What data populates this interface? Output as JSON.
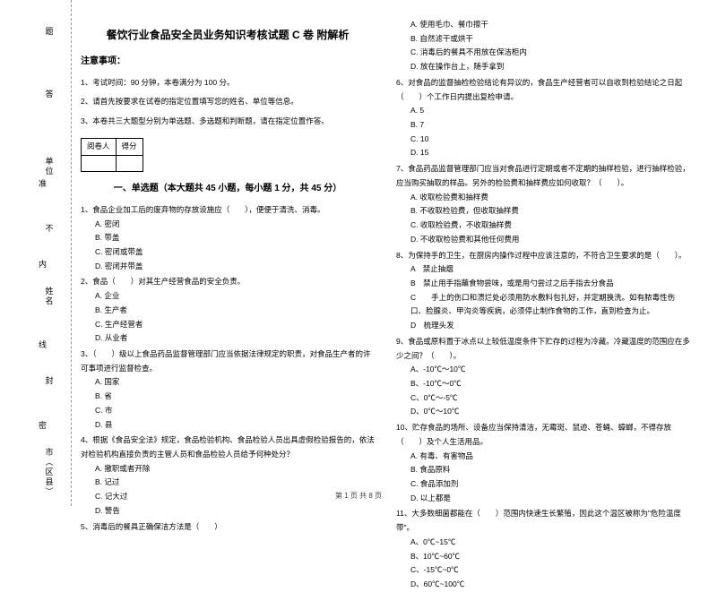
{
  "binding": {
    "labels": [
      "市（区县）",
      "封",
      "姓名",
      "不",
      "单位",
      "答",
      "题"
    ],
    "small": [
      "密",
      "线",
      "内",
      "准"
    ]
  },
  "title": "餐饮行业食品安全员业务知识考核试题 C 卷 附解析",
  "notice": {
    "heading": "注意事项：",
    "items": [
      "1、考试时间：90 分钟，本卷满分为 100 分。",
      "2、请首先按要求在试卷的指定位置填写您的姓名、单位等信息。",
      "3、本卷共三大题型分别为单选题、多选题和判断题，请在指定位置作答。"
    ]
  },
  "scorebox": {
    "col1": "阅卷人",
    "col2": "得分"
  },
  "section1": "一、单选题（本大题共 45 小题，每小题 1 分，共 45 分）",
  "left_questions": [
    {
      "q": "1、食品企业加工后的废弃物的存放设施应（　　），便便于清洗、消毒。",
      "opts": [
        "A. 密闭",
        "B. 带盖",
        "C. 密闭或带盖",
        "D. 密闭并带盖"
      ]
    },
    {
      "q": "2、食品（　　）对其生产经营食品的安全负责。",
      "opts": [
        "A. 企业",
        "B. 生产者",
        "C. 生产经营者",
        "D. 从业者"
      ]
    },
    {
      "q": "3、（　　）级以上食品药品监督管理部门应当依据法律规定的职责，对食品生产者的许可事项进行监督检查。",
      "opts": [
        "A. 国家",
        "B. 省",
        "C. 市",
        "D. 县"
      ]
    },
    {
      "q": "4、根据《食品安全法》规定，食品检验机构、食品检验人员出具虚假检验报告的，依法对检验机构直接负责的主管人员和食品检验人员给予何种处分？",
      "opts": [
        "A. 撤职或者开除",
        "B. 记过",
        "C. 记大过",
        "D. 警告"
      ]
    },
    {
      "q": "5、消毒后的餐具正确保洁方法是（　　）",
      "opts": []
    }
  ],
  "right_top_opts": [
    "A. 使用毛巾、餐巾擦干",
    "B. 自然滤干或烘干",
    "C. 消毒后的餐具不用放在保洁柜内",
    "D. 放在操作台上，随手拿到"
  ],
  "right_questions": [
    {
      "q": "6、对食品的监督抽检检验结论有异议的，食品生产经营者可以自收到检验结论之日起（　　）个工作日内提出复检申请。",
      "opts": [
        "A. 5",
        "B. 7",
        "C. 10",
        "D. 15"
      ]
    },
    {
      "q": "7、食品药品监督管理部门应当对食品进行定期或者不定期的抽样检验，进行抽样检验，应当购买抽取的样品。另外的检验费和抽样费应如何收取？（　　）。",
      "opts": [
        "A. 收取检验费和抽样费",
        "B. 不收取检验费，但收取抽样费",
        "C. 收取检验费，不收取抽样费",
        "D. 不收取检验费和其他任何费用"
      ]
    },
    {
      "q": "8、为保持手的卫生，在厨房内操作过程中应该注意的，不符合卫生要求的是（　　）。",
      "opts": [
        "A　禁止抽烟",
        "B　禁止用手指蘸食物尝味，或是用勺尝过之后手指去分食品",
        "C　　手上的伤口和溃烂处必须用防水敷料包扎好，并定期换洗。如有脓毒性伤口、脸腺炎、甲沟炎等疾病，必须停止制作食物的工作，直到检查为止。",
        "D　梳理头发"
      ]
    },
    {
      "q": "9、食品或原料置于冰点以上较低温度条件下贮存的过程为冷藏。冷藏温度的范围应在多少之间？（　　）。",
      "opts": [
        "A、-10℃～10℃",
        "B、-10℃～0℃",
        "C、0℃～-5℃",
        "D、0℃～10℃"
      ]
    },
    {
      "q": "10、贮存食品的场所、设备应当保持清洁，无霉斑、鼠迹、苍蝇、蟑螂，不得存放（　　）及个人生活用品。",
      "opts": [
        "A. 有毒、有害物品",
        "B. 食品原料",
        "C. 食品添加剂",
        "D. 以上都是"
      ]
    },
    {
      "q": "11、大多数细菌都能在（　　）范围内快速生长繁殖，因此这个温区被称为\"危险温度带\"。",
      "opts": [
        "A、0℃~15℃",
        "B、10℃~60℃",
        "C、-15℃~0℃",
        "D、60℃~100℃"
      ]
    }
  ],
  "footer": "第 1 页 共 8 页"
}
